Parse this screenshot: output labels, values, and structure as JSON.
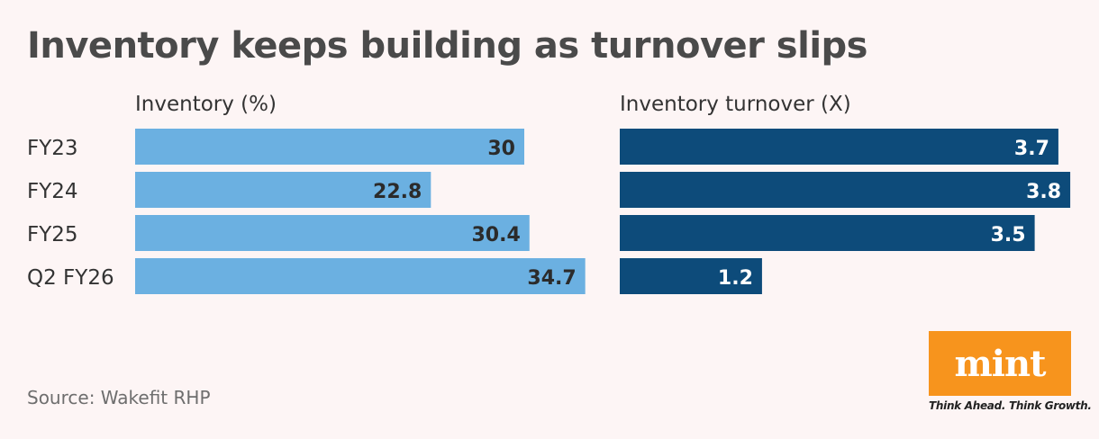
{
  "title": "Inventory keeps building as turnover slips",
  "source": "Source: Wakefit RHP",
  "logo": {
    "word": "mint",
    "tagline": "Think Ahead. Think Growth."
  },
  "colors": {
    "inventory_bar": "#6bb0e1",
    "turnover_bar": "#0d4b7a",
    "background": "#fdf5f5",
    "logo": "#f7941d"
  },
  "chart_data": [
    {
      "type": "bar",
      "orientation": "horizontal",
      "title": "Inventory (%)",
      "categories": [
        "FY23",
        "FY24",
        "FY25",
        "Q2 FY26"
      ],
      "values": [
        30,
        22.8,
        30.4,
        34.7
      ],
      "value_labels": [
        "30",
        "22.8",
        "30.4",
        "34.7"
      ],
      "color": "#6bb0e1",
      "grid": false
    },
    {
      "type": "bar",
      "orientation": "horizontal",
      "title": "Inventory turnover (X)",
      "categories": [
        "FY23",
        "FY24",
        "FY25",
        "Q2 FY26"
      ],
      "values": [
        3.7,
        3.8,
        3.5,
        1.2
      ],
      "value_labels": [
        "3.7",
        "3.8",
        "3.5",
        "1.2"
      ],
      "color": "#0d4b7a",
      "grid": false
    }
  ]
}
